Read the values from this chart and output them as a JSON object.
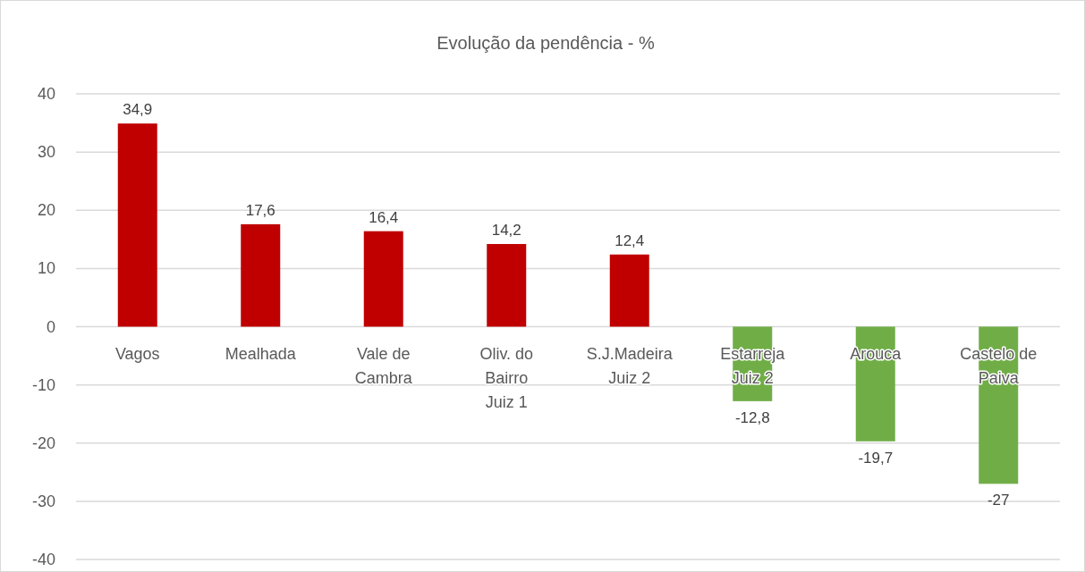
{
  "chart_data": {
    "type": "bar",
    "title": "Evolução da pendência - %",
    "categories": [
      "Vagos",
      "Mealhada",
      "Vale de Cambra",
      "Oliv. do Bairro Juiz 1",
      "S.J.Madeira Juiz 2",
      "Estarreja Juiz 2",
      "Arouca",
      "Castelo de Paiva"
    ],
    "values": [
      34.9,
      17.6,
      16.4,
      14.2,
      12.4,
      -12.8,
      -19.7,
      -27
    ],
    "colors": [
      "#c00000",
      "#c00000",
      "#c00000",
      "#c00000",
      "#c00000",
      "#70ad47",
      "#70ad47",
      "#70ad47"
    ],
    "value_labels": [
      "34,9",
      "17,6",
      "16,4",
      "14,2",
      "12,4",
      "-12,8",
      "-19,7",
      "-27"
    ],
    "ylim": [
      -40,
      40
    ],
    "yticks": [
      -40,
      -30,
      -20,
      -10,
      0,
      10,
      20,
      30,
      40
    ],
    "grid": "y"
  }
}
